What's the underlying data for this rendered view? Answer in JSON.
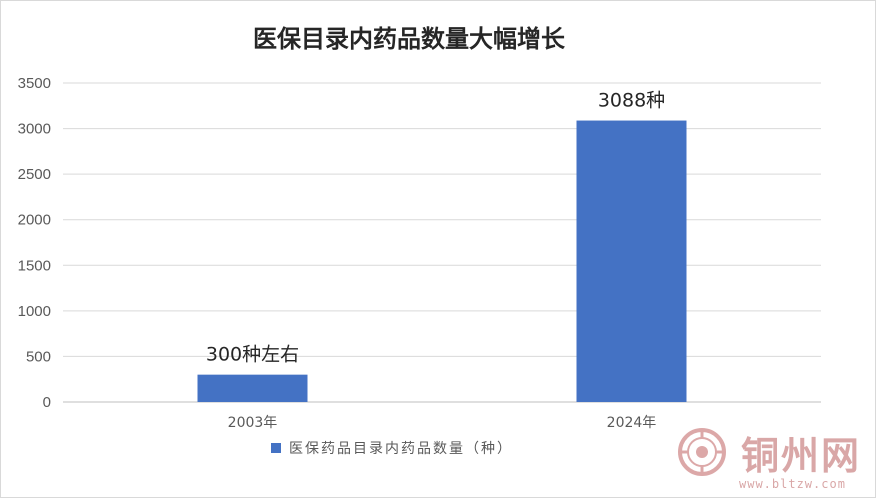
{
  "chart_data": {
    "type": "bar",
    "title": "医保目录内药品数量大幅增长",
    "categories": [
      "2003年",
      "2024年"
    ],
    "series": [
      {
        "name": "医保药品目录内药品数量（种）",
        "values": [
          300,
          3088
        ],
        "color": "#4472c4"
      }
    ],
    "data_labels": [
      "300种左右",
      "3088种"
    ],
    "y_ticks": [
      "0",
      "500",
      "1000",
      "1500",
      "2000",
      "2500",
      "3000",
      "3500"
    ],
    "ylim": [
      0,
      3500
    ],
    "grid": true,
    "legend_position": "bottom"
  },
  "watermark": {
    "name": "铜州网",
    "url": "www.bltzw.com",
    "color": "#d9a7a7"
  }
}
